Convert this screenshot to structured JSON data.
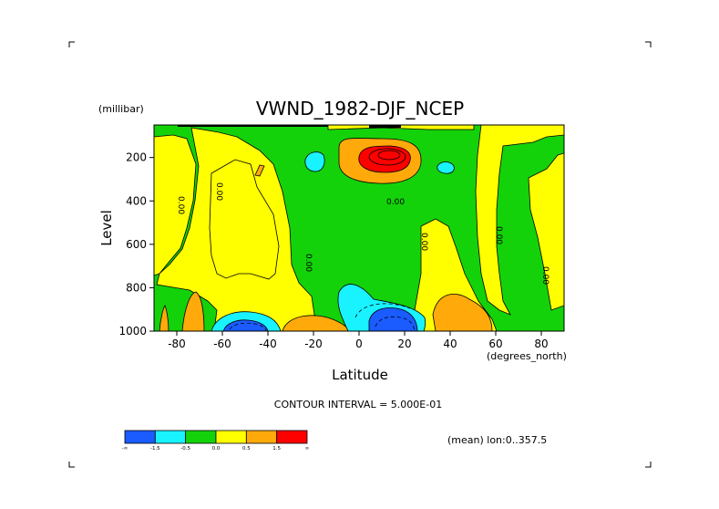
{
  "chart_data": {
    "type": "heatmap",
    "title": "VWND_1982-DJF_NCEP",
    "xlabel": "Latitude",
    "xunit": "(degrees_north)",
    "ylabel": "Level",
    "yunit": "(millibar)",
    "xlim": [
      -90,
      90
    ],
    "ylim": [
      1000,
      50
    ],
    "x_ticks": [
      -80,
      -60,
      -40,
      -20,
      0,
      20,
      40,
      60,
      80
    ],
    "x_tick_labels": [
      "-80",
      "-60",
      "-40",
      "-20",
      "0",
      "20",
      "40",
      "60",
      "80"
    ],
    "y_ticks": [
      200,
      400,
      600,
      800,
      1000
    ],
    "y_tick_labels": [
      "200",
      "400",
      "600",
      "800",
      "1000"
    ],
    "contour_interval_text": "CONTOUR INTERVAL = 5.000E-01",
    "mean_text": "(mean) lon:0..357.5",
    "contour_label": "0.00",
    "colorbar": {
      "colors": [
        "#1a5cff",
        "#19f2ff",
        "#14d20a",
        "#ffff00",
        "#ffaa0a",
        "#ff0000"
      ],
      "labels": [
        "-∞",
        "-1.5",
        "-0.5",
        "0.0",
        "0.5",
        "1.5",
        "∞"
      ]
    },
    "features": [
      {
        "kind": "max",
        "lat": 12,
        "level": 165,
        "value": 2.0
      },
      {
        "kind": "min",
        "lat": 12,
        "level": 960,
        "value": -1.8
      },
      {
        "kind": "min",
        "lat": -50,
        "level": 970,
        "value": -1.6
      },
      {
        "kind": "max",
        "lat": -22,
        "level": 970,
        "value": 0.8
      },
      {
        "kind": "max",
        "lat": 45,
        "level": 910,
        "value": 0.7
      },
      {
        "kind": "max",
        "lat": -75,
        "level": 900,
        "value": 0.6
      }
    ]
  }
}
